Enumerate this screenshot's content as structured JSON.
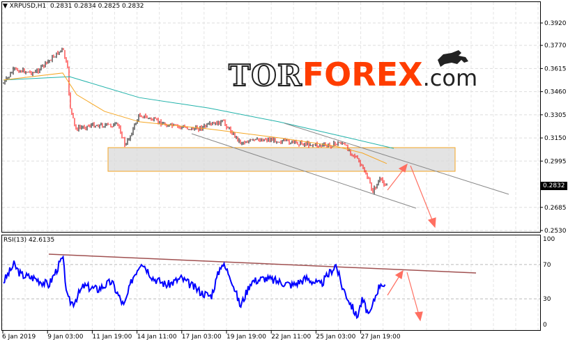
{
  "header": {
    "symbol_timeframe": "XRPUSD,H1",
    "ohlc": "0.2831 0.2834 0.2825 0.2832"
  },
  "rsi_header": "RSI(13) 42.6135",
  "logo": {
    "tor": "TOR",
    "forex": "FOREX",
    "com": ".com"
  },
  "current_price": "0.2832",
  "colors": {
    "bull_candle": "#000000",
    "bear_candle": "#ff0000",
    "ma_fast": "#f5a623",
    "ma_slow": "#20b2aa",
    "rsi": "#0000ff",
    "zone": "#d9d9d9",
    "zone_border": "#f5a623",
    "arrows": "#ff6f61",
    "rsi_trendline": "#a05050"
  },
  "chart_data": [
    {
      "type": "line",
      "title": "XRPUSD,H1",
      "ylim": [
        0.253,
        0.392
      ],
      "y_ticks": [
        "0.3920",
        "0.3770",
        "0.3615",
        "0.3460",
        "0.3305",
        "0.3150",
        "0.2995",
        "0.2685",
        "0.2530"
      ],
      "x_ticks": [
        "6 Jan 2019",
        "9 Jan 03:00",
        "11 Jan 19:00",
        "14 Jan 11:00",
        "17 Jan 03:00",
        "19 Jan 19:00",
        "22 Jan 11:00",
        "25 Jan 03:00",
        "27 Jan 19:00"
      ],
      "grid": true,
      "series": [
        {
          "values": [
            [
              "2019-01-06T12:00",
              0.3514
            ],
            [
              "2019-01-07T03:00",
              0.3608
            ],
            [
              "2019-01-08T09:00",
              0.3585
            ],
            [
              "2019-01-10T01:00",
              0.3747
            ],
            [
              "2019-01-10T08:00",
              0.361
            ],
            [
              "2019-01-10T11:00",
              0.3375
            ],
            [
              "2019-01-10T19:00",
              0.321
            ],
            [
              "2019-01-11T17:00",
              0.3235
            ],
            [
              "2019-01-13T09:00",
              0.3235
            ],
            [
              "2019-01-13T19:00",
              0.3095
            ],
            [
              "2019-01-14T15:00",
              0.3305
            ],
            [
              "2019-01-16T07:00",
              0.3235
            ],
            [
              "2019-01-17T23:00",
              0.321
            ],
            [
              "2019-01-19T15:00",
              0.3258
            ],
            [
              "2019-01-20T16:00",
              0.312
            ],
            [
              "2019-01-22T03:00",
              0.3142
            ],
            [
              "2019-01-23T19:00",
              0.312
            ],
            [
              "2019-01-25T21:00",
              0.3096
            ],
            [
              "2019-01-26T17:00",
              0.312
            ],
            [
              "2019-01-27T13:00",
              0.3025
            ],
            [
              "2019-01-28T04:00",
              0.291
            ],
            [
              "2019-01-28T14:00",
              0.2792
            ],
            [
              "2019-01-29T00:00",
              0.287
            ],
            [
              "2019-01-29T10:00",
              0.2832
            ]
          ]
        },
        {
          "values": [
            [
              "2019-01-06T12:00",
              0.3538
            ],
            [
              "2019-01-10T11:00",
              0.356
            ],
            [
              "2019-01-14T15:00",
              0.342
            ],
            [
              "2019-01-18T19:00",
              0.335
            ],
            [
              "2019-01-22T23:00",
              0.3258
            ],
            [
              "2019-01-27T03:00",
              0.3151
            ],
            [
              "2019-01-29T20:00",
              0.308
            ]
          ]
        },
        {
          "values": [
            [
              "2019-01-06T12:00",
              0.3538
            ],
            [
              "2019-01-10T01:00",
              0.3585
            ],
            [
              "2019-01-10T21:00",
              0.344
            ],
            [
              "2019-01-12T13:00",
              0.3328
            ],
            [
              "2019-01-14T15:00",
              0.3258
            ],
            [
              "2019-01-18T19:00",
              0.321
            ],
            [
              "2019-01-22T23:00",
              0.3151
            ],
            [
              "2019-01-26T07:00",
              0.3096
            ],
            [
              "2019-01-27T23:00",
              0.3049
            ],
            [
              "2019-01-29T10:00",
              0.2978
            ]
          ]
        }
      ]
    },
    {
      "type": "line",
      "title": "RSI(13) 42.6135",
      "ylim": [
        0,
        100
      ],
      "y_ticks": [
        "100",
        "70",
        "30",
        "0"
      ],
      "levels": [
        70,
        30
      ],
      "series": [
        {
          "values": [
            [
              "2019-01-06T12:00",
              50
            ],
            [
              "2019-01-07T03:00",
              70
            ],
            [
              "2019-01-07T13:00",
              58
            ],
            [
              "2019-01-08T09:00",
              54
            ],
            [
              "2019-01-09T05:00",
              46
            ],
            [
              "2019-01-10T01:00",
              78
            ],
            [
              "2019-01-10T08:00",
              29
            ],
            [
              "2019-01-10T16:00",
              25
            ],
            [
              "2019-01-11T07:00",
              45
            ],
            [
              "2019-01-12T03:00",
              41
            ],
            [
              "2019-01-12T23:00",
              50
            ],
            [
              "2019-01-13T17:00",
              21
            ],
            [
              "2019-01-14T05:00",
              54
            ],
            [
              "2019-01-14T18:00",
              74
            ],
            [
              "2019-01-15T11:00",
              54
            ],
            [
              "2019-01-16T07:00",
              46
            ],
            [
              "2019-01-17T03:00",
              54
            ],
            [
              "2019-01-18T09:00",
              37
            ],
            [
              "2019-01-18T22:00",
              33
            ],
            [
              "2019-01-19T13:00",
              72
            ],
            [
              "2019-01-20T01:00",
              58
            ],
            [
              "2019-01-20T16:00",
              21
            ],
            [
              "2019-01-21T07:00",
              50
            ],
            [
              "2019-01-22T03:00",
              54
            ],
            [
              "2019-01-22T23:00",
              50
            ],
            [
              "2019-01-23T19:00",
              46
            ],
            [
              "2019-01-24T15:00",
              54
            ],
            [
              "2019-01-25T11:00",
              46
            ],
            [
              "2019-01-26T09:00",
              70
            ],
            [
              "2019-01-26T17:00",
              46
            ],
            [
              "2019-01-27T08:00",
              21
            ],
            [
              "2019-01-27T15:00",
              9
            ],
            [
              "2019-01-27T23:00",
              29
            ],
            [
              "2019-01-28T09:00",
              9
            ],
            [
              "2019-01-28T19:00",
              37
            ],
            [
              "2019-01-29T02:00",
              50
            ],
            [
              "2019-01-29T08:00",
              42.6
            ]
          ]
        }
      ]
    }
  ]
}
